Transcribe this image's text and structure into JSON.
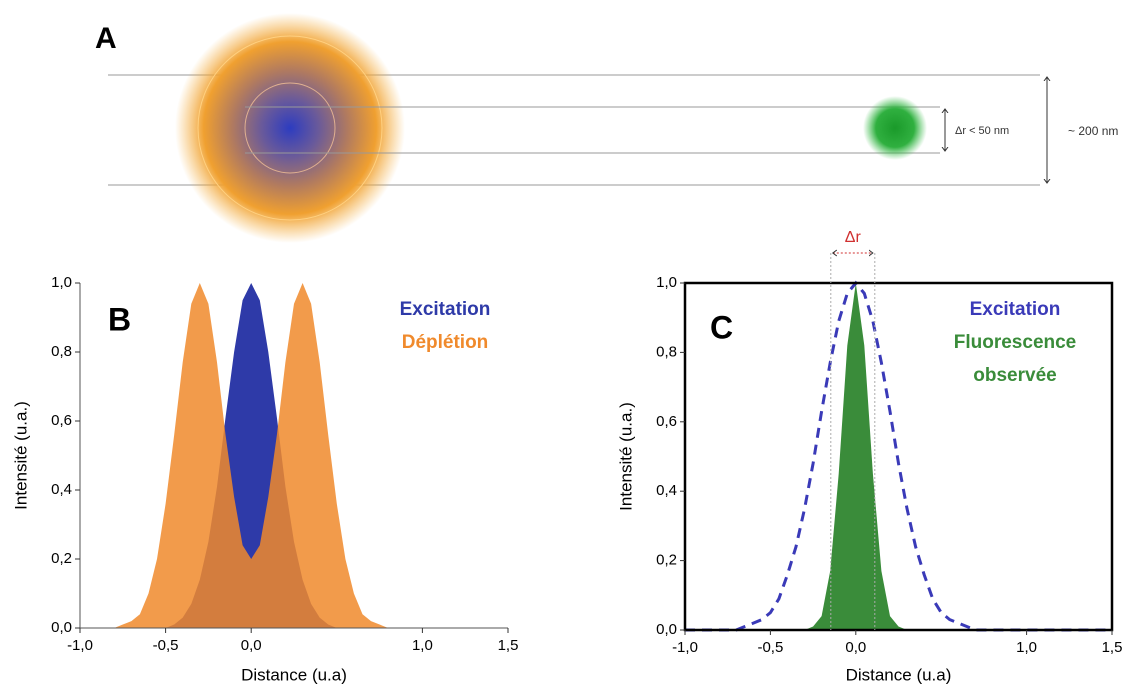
{
  "diagram": {
    "panel_label": "A",
    "small_gap": "Δr < 50 nm",
    "large_gap": "~ 200 nm"
  },
  "chart_data": [
    {
      "type": "area",
      "panel_label": "B",
      "xlabel": "Distance (u.a)",
      "ylabel": "Intensité (u.a.)",
      "frame": false,
      "x": [
        -1,
        -0.95,
        -0.9,
        -0.85,
        -0.8,
        -0.75,
        -0.7,
        -0.65,
        -0.6,
        -0.55,
        -0.5,
        -0.45,
        -0.4,
        -0.35,
        -0.3,
        -0.25,
        -0.2,
        -0.15,
        -0.1,
        -0.05,
        0,
        0.05,
        0.1,
        0.15,
        0.2,
        0.25,
        0.3,
        0.35,
        0.4,
        0.45,
        0.5,
        0.55,
        0.6,
        0.65,
        0.7,
        0.75,
        0.8,
        0.85,
        0.9,
        0.95,
        1,
        1.05,
        1.1,
        1.15,
        1.2,
        1.25,
        1.3,
        1.35,
        1.4,
        1.45,
        1.5
      ],
      "series": [
        {
          "name": "Excitation",
          "color": "#2e3aa8",
          "style": "fill",
          "values": [
            0,
            0,
            0,
            0,
            0,
            0,
            0,
            0,
            0,
            0,
            0,
            0.01,
            0.03,
            0.07,
            0.14,
            0.25,
            0.41,
            0.61,
            0.8,
            0.95,
            1,
            0.95,
            0.8,
            0.61,
            0.41,
            0.25,
            0.14,
            0.07,
            0.03,
            0.01,
            0,
            0,
            0,
            0,
            0,
            0,
            0,
            0,
            0,
            0,
            0,
            0,
            0,
            0,
            0,
            0,
            0,
            0,
            0,
            0,
            0
          ]
        },
        {
          "name": "Déplétion",
          "color": "#f08a2c",
          "style": "fill",
          "values": [
            0,
            0,
            0,
            0,
            0,
            0.01,
            0.02,
            0.04,
            0.1,
            0.2,
            0.36,
            0.56,
            0.77,
            0.94,
            1,
            0.94,
            0.77,
            0.56,
            0.38,
            0.24,
            0.2,
            0.24,
            0.38,
            0.56,
            0.77,
            0.94,
            1,
            0.94,
            0.77,
            0.56,
            0.36,
            0.2,
            0.1,
            0.04,
            0.02,
            0.01,
            0,
            0,
            0,
            0,
            0,
            0,
            0,
            0,
            0,
            0,
            0,
            0,
            0,
            0,
            0
          ]
        }
      ],
      "xlim": [
        -1,
        1.5
      ],
      "xticks": [
        {
          "value": -1,
          "label": "-1,0"
        },
        {
          "value": -0.5,
          "label": "-0,5"
        },
        {
          "value": 0,
          "label": "0,0"
        },
        {
          "value": 1,
          "label": "1,0"
        },
        {
          "value": 1.5,
          "label": "1,5"
        }
      ],
      "ylim": [
        0,
        1
      ],
      "yticks": [
        {
          "value": 0,
          "label": "0,0"
        },
        {
          "value": 0.2,
          "label": "0,2"
        },
        {
          "value": 0.4,
          "label": "0,4"
        },
        {
          "value": 0.6,
          "label": "0,6"
        },
        {
          "value": 0.8,
          "label": "0,8"
        },
        {
          "value": 1,
          "label": "1,0"
        }
      ]
    },
    {
      "type": "area",
      "panel_label": "C",
      "xlabel": "Distance (u.a)",
      "ylabel": "Intensité (u.a.)",
      "frame": true,
      "annotation": "Δr",
      "x": [
        -1,
        -0.95,
        -0.9,
        -0.85,
        -0.8,
        -0.75,
        -0.7,
        -0.65,
        -0.6,
        -0.55,
        -0.5,
        -0.45,
        -0.4,
        -0.35,
        -0.3,
        -0.25,
        -0.2,
        -0.15,
        -0.1,
        -0.05,
        0,
        0.05,
        0.1,
        0.15,
        0.2,
        0.25,
        0.3,
        0.35,
        0.4,
        0.45,
        0.5,
        0.55,
        0.6,
        0.65,
        0.7,
        0.75,
        0.8,
        0.85,
        0.9,
        0.95,
        1,
        1.05,
        1.1,
        1.15,
        1.2,
        1.25,
        1.3,
        1.35,
        1.4,
        1.45,
        1.5
      ],
      "series": [
        {
          "name": "Fluorescence observée",
          "color": "#3a8c3a",
          "style": "fill",
          "values": [
            0,
            0,
            0,
            0,
            0,
            0,
            0,
            0,
            0,
            0,
            0,
            0,
            0,
            0,
            0,
            0.01,
            0.04,
            0.17,
            0.45,
            0.82,
            1,
            0.82,
            0.45,
            0.17,
            0.04,
            0.01,
            0,
            0,
            0,
            0,
            0,
            0,
            0,
            0,
            0,
            0,
            0,
            0,
            0,
            0,
            0,
            0,
            0,
            0,
            0,
            0,
            0,
            0,
            0,
            0,
            0
          ]
        },
        {
          "name": "Excitation",
          "color": "#3a3ab8",
          "style": "dashed",
          "values": [
            0,
            0,
            0,
            0,
            0,
            0,
            0,
            0.01,
            0.02,
            0.03,
            0.05,
            0.09,
            0.16,
            0.24,
            0.35,
            0.48,
            0.63,
            0.77,
            0.89,
            0.97,
            1,
            0.97,
            0.89,
            0.77,
            0.63,
            0.48,
            0.35,
            0.24,
            0.16,
            0.09,
            0.05,
            0.03,
            0.02,
            0.01,
            0,
            0,
            0,
            0,
            0,
            0,
            0,
            0,
            0,
            0,
            0,
            0,
            0,
            0,
            0,
            0,
            0
          ]
        }
      ],
      "xlim": [
        -1,
        1.5
      ],
      "xticks": [
        {
          "value": -1,
          "label": "-1,0"
        },
        {
          "value": -0.5,
          "label": "-0,5"
        },
        {
          "value": 0,
          "label": "0,0"
        },
        {
          "value": 1,
          "label": "1,0"
        },
        {
          "value": 1.5,
          "label": "1,5"
        }
      ],
      "ylim": [
        0,
        1
      ],
      "yticks": [
        {
          "value": 0,
          "label": "0,0"
        },
        {
          "value": 0.2,
          "label": "0,2"
        },
        {
          "value": 0.4,
          "label": "0,4"
        },
        {
          "value": 0.6,
          "label": "0,6"
        },
        {
          "value": 0.8,
          "label": "0,8"
        },
        {
          "value": 1,
          "label": "1,0"
        }
      ]
    }
  ]
}
